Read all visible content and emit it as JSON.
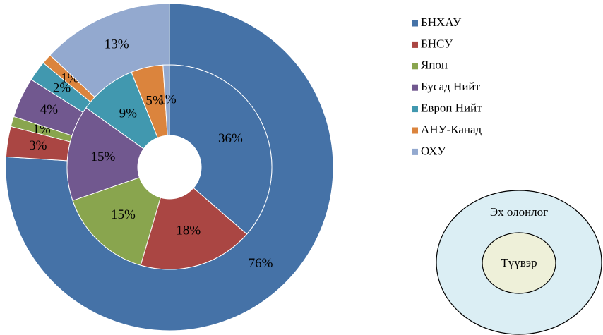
{
  "chart_data": {
    "type": "doughnut",
    "categories": [
      "БНХАУ",
      "БНСУ",
      "Япон",
      "Бусад Нийт",
      "Европ Нийт",
      "АНУ-Канад",
      "ОХУ"
    ],
    "colors": [
      "#4572A7",
      "#AA4643",
      "#89A54E",
      "#71588F",
      "#4198AF",
      "#DB843D",
      "#93A9CF"
    ],
    "series": [
      {
        "values": [
          76,
          3,
          1,
          4,
          2,
          1,
          13
        ],
        "value_labels": [
          "76%",
          "3%",
          "1%",
          "4%",
          "2%",
          "1%",
          "13%"
        ]
      },
      {
        "values": [
          36,
          18,
          15,
          15,
          9,
          5,
          1
        ],
        "value_labels": [
          "36%",
          "18%",
          "15%",
          "15%",
          "9%",
          "5%",
          "1%"
        ]
      }
    ]
  },
  "diagram": {
    "outer": "Эх олонлог",
    "inner": "Түүвэр"
  }
}
